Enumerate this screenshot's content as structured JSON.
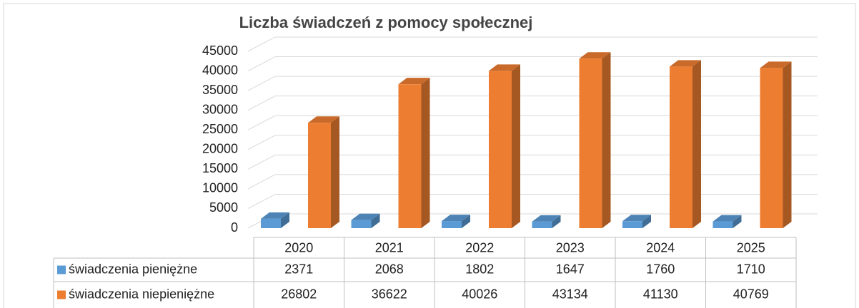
{
  "chart_data": {
    "type": "bar3d",
    "title": "Liczba świadczeń z pomocy społecznej",
    "categories": [
      "2020",
      "2021",
      "2022",
      "2023",
      "2024",
      "2025"
    ],
    "series": [
      {
        "name": "świadczenia pieniężne",
        "color": "#5b9bd5",
        "values": [
          2371,
          2068,
          1802,
          1647,
          1760,
          1710
        ]
      },
      {
        "name": "świadczenia niepieniężne",
        "color": "#ed7d31",
        "values": [
          26802,
          36622,
          40026,
          43134,
          41130,
          40769
        ]
      }
    ],
    "ylim": [
      0,
      45000
    ],
    "yticks": [
      0,
      5000,
      10000,
      15000,
      20000,
      25000,
      30000,
      35000,
      40000,
      45000
    ],
    "grid": true,
    "data_table": true
  }
}
